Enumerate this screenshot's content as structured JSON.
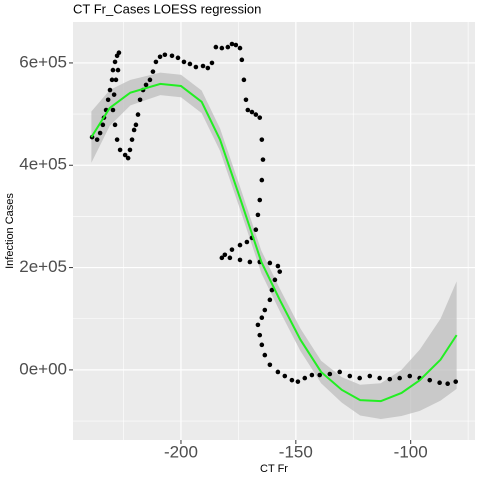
{
  "chart_data": {
    "type": "scatter",
    "title": "CT Fr_Cases LOESS regression",
    "x_label": "CT Fr",
    "y_label": "Infection Cases",
    "xlim": [
      -247,
      -72
    ],
    "ylim": [
      -137000,
      680000
    ],
    "xticks": [
      -200,
      -150,
      -100
    ],
    "yticks": [
      {
        "value": 0,
        "label": "0e+00"
      },
      {
        "value": 200000,
        "label": "2e+05"
      },
      {
        "value": 400000,
        "label": "4e+05"
      },
      {
        "value": 600000,
        "label": "6e+05"
      }
    ],
    "xminor": [
      -225,
      -175,
      -125,
      -75
    ],
    "yminor": [
      -100000,
      100000,
      300000,
      500000
    ],
    "grid": true,
    "series": [
      {
        "type": "band",
        "color": "#bdbdbd",
        "x": [
          -239,
          -231,
          -222,
          -209,
          -200,
          -191,
          -183,
          -174,
          -165,
          -157,
          -148,
          -139,
          -130,
          -122,
          -113,
          -104,
          -96,
          -87,
          -80
        ],
        "values": [
          505000,
          547000,
          567000,
          581000,
          577000,
          546000,
          472000,
          354000,
          233000,
          159000,
          81000,
          18000,
          -14000,
          -29000,
          -26000,
          0,
          40000,
          100000,
          173000
        ],
        "lower": [
          405000,
          477000,
          517000,
          537000,
          533000,
          502000,
          428000,
          310000,
          189000,
          115000,
          37000,
          -26000,
          -64000,
          -89000,
          -96000,
          -90000,
          -80000,
          -60000,
          -37000
        ]
      },
      {
        "type": "scatter",
        "color": "#000000",
        "x": [
          -238.7,
          -236.5,
          -235.2,
          -234,
          -233.5,
          -232.6,
          -231.7,
          -230.9,
          -230,
          -229.6,
          -228.7,
          -227.8,
          -227,
          -227.4,
          -228.3,
          -229.1,
          -229.6,
          -228.7,
          -227.8,
          -226.5,
          -224.3,
          -223,
          -222.2,
          -221.3,
          -220.4,
          -219.6,
          -218.7,
          -217.8,
          -216.5,
          -215.2,
          -213.5,
          -212.2,
          -210.9,
          -209.1,
          -207,
          -203.9,
          -201.3,
          -198.7,
          -196.1,
          -193.5,
          -190.4,
          -188.3,
          -186.5,
          -184.8,
          -182.2,
          -179.6,
          -177.8,
          -176.1,
          -174.3,
          -173.5,
          -172.6,
          -171.7,
          -170.9,
          -169.1,
          -167.4,
          -165.7,
          -164.8,
          -164.3,
          -164.8,
          -165.7,
          -166.5,
          -167.4,
          -169.1,
          -171.3,
          -174.3,
          -177.8,
          -180.9,
          -182.2,
          -178.7,
          -174.3,
          -170,
          -165.7,
          -161.3,
          -157.8,
          -157,
          -159.1,
          -160.4,
          -161.3,
          -163.5,
          -164.8,
          -166.5,
          -165.7,
          -164.8,
          -163.5,
          -161.3,
          -157.8,
          -154.8,
          -151.7,
          -149.1,
          -146.1,
          -143,
          -139.6,
          -135.2,
          -130.9,
          -126.5,
          -122.2,
          -117.8,
          -113.5,
          -109.1,
          -104.8,
          -100.4,
          -96.1,
          -91.7,
          -87.4,
          -83.9,
          -80.4
        ],
        "values": [
          455000,
          450000,
          463000,
          479000,
          493000,
          508000,
          528000,
          547000,
          567000,
          586000,
          602000,
          614000,
          620000,
          586000,
          567000,
          538000,
          508000,
          479000,
          450000,
          430000,
          420000,
          414000,
          430000,
          450000,
          469000,
          479000,
          499000,
          528000,
          547000,
          557000,
          567000,
          583000,
          602000,
          612000,
          616000,
          614000,
          610000,
          602000,
          598000,
          592000,
          594000,
          590000,
          600000,
          631000,
          629000,
          631000,
          637000,
          635000,
          629000,
          606000,
          567000,
          528000,
          508000,
          504000,
          499000,
          493000,
          450000,
          411000,
          371000,
          332000,
          303000,
          274000,
          258000,
          250000,
          244000,
          235000,
          225000,
          219000,
          219000,
          215000,
          211000,
          211000,
          209000,
          203000,
          192000,
          176000,
          156000,
          137000,
          117000,
          102000,
          88000,
          68000,
          49000,
          29000,
          10000,
          -4000,
          -12000,
          -20000,
          -23000,
          -16000,
          -10000,
          -10000,
          -8000,
          -4000,
          -12000,
          -16000,
          -12000,
          -16000,
          -18000,
          -16000,
          -12000,
          -16000,
          -20000,
          -25000,
          -27000,
          -23000
        ]
      },
      {
        "type": "line",
        "color": "#22ee22",
        "x": [
          -239,
          -231,
          -222,
          -209,
          -200,
          -191,
          -183,
          -174,
          -165,
          -157,
          -148,
          -139,
          -130,
          -122,
          -113,
          -104,
          -96,
          -87,
          -80
        ],
        "values": [
          455000,
          512000,
          542000,
          559000,
          555000,
          524000,
          450000,
          332000,
          211000,
          137000,
          59000,
          -4000,
          -39000,
          -59000,
          -61000,
          -45000,
          -20000,
          20000,
          68000
        ]
      }
    ]
  }
}
